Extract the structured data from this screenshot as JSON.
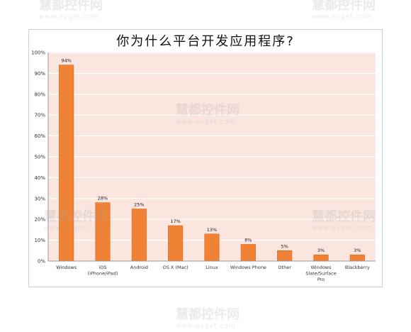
{
  "chart_data": {
    "type": "bar",
    "title": "你为什么平台开发应用程序?",
    "categories": [
      "Windows",
      "iOS\n(iPhone/iPad)",
      "Android",
      "OS X (Mac)",
      "Linux",
      "Windows Phone",
      "Other",
      "Windows\nSlate/Surface\nPro",
      "Blackberry"
    ],
    "values": [
      94,
      28,
      25,
      17,
      13,
      8,
      5,
      3,
      3
    ],
    "data_labels": [
      "94%",
      "28%",
      "25%",
      "17%",
      "13%",
      "8%",
      "5%",
      "3%",
      "3%"
    ],
    "ylim": [
      0,
      100
    ],
    "yticks": [
      "0%",
      "10%",
      "20%",
      "30%",
      "40%",
      "50%",
      "60%",
      "70%",
      "80%",
      "90%",
      "100%"
    ],
    "grid": true,
    "legend": "none",
    "colors": {
      "bar": "#f08235",
      "bar_edge": "#d96a1f",
      "plot_bg": "#fbe6df",
      "grid": "#ffffff"
    }
  },
  "watermark": {
    "text": "慧都控件网",
    "sub": "www.evget.com"
  }
}
